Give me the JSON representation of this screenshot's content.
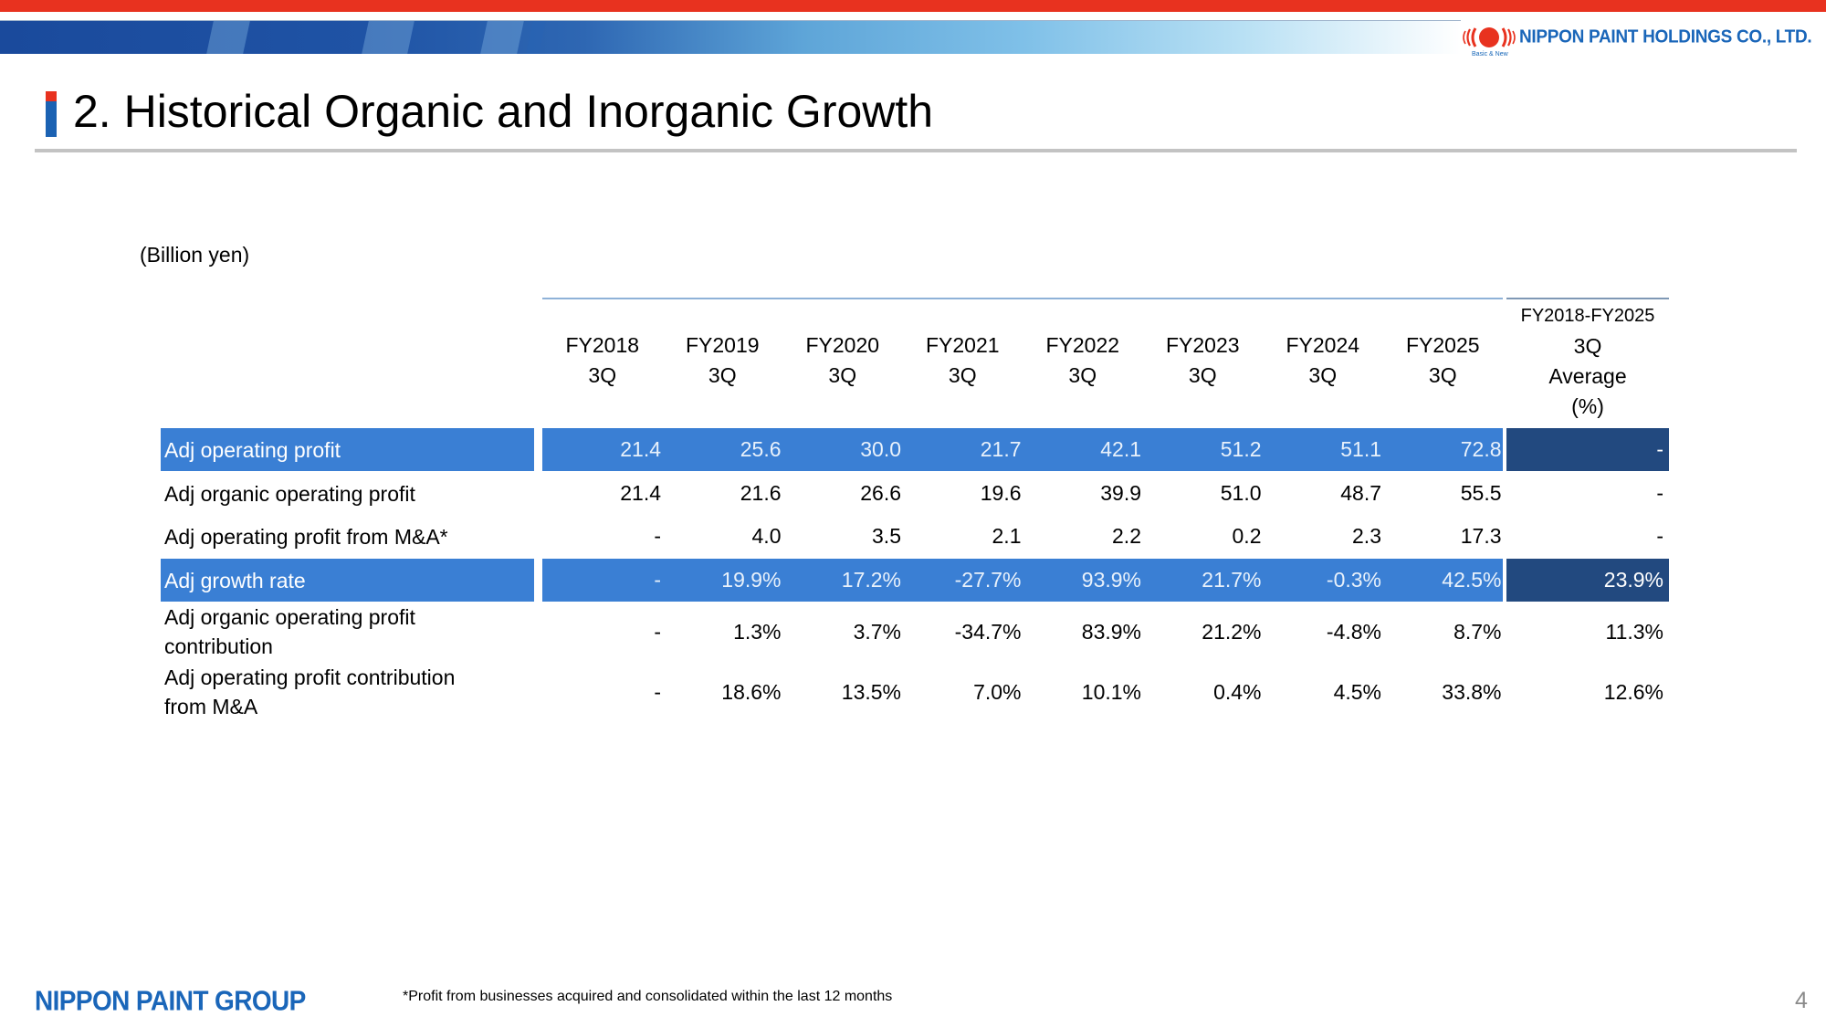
{
  "header": {
    "company_name": "NIPPON PAINT HOLDINGS CO., LTD.",
    "logo_tagline": "Basic & New",
    "brand_colors": {
      "red": "#e8321f",
      "blue": "#1a66b9"
    }
  },
  "title": "2. Historical Organic and Inorganic Growth",
  "unit_label": "(Billion yen)",
  "table": {
    "columns": [
      {
        "line1": "FY2018",
        "line2": "3Q"
      },
      {
        "line1": "FY2019",
        "line2": "3Q"
      },
      {
        "line1": "FY2020",
        "line2": "3Q"
      },
      {
        "line1": "FY2021",
        "line2": "3Q"
      },
      {
        "line1": "FY2022",
        "line2": "3Q"
      },
      {
        "line1": "FY2023",
        "line2": "3Q"
      },
      {
        "line1": "FY2024",
        "line2": "3Q"
      },
      {
        "line1": "FY2025",
        "line2": "3Q"
      }
    ],
    "average_column": {
      "line1": "FY2018-FY2025",
      "line2": "3Q",
      "line3": "Average",
      "line4": "(%)"
    },
    "rows": [
      {
        "label": "Adj operating profit",
        "highlight": true,
        "values": [
          "21.4",
          "25.6",
          "30.0",
          "21.7",
          "42.1",
          "51.2",
          "51.1",
          "72.8"
        ],
        "average": "-"
      },
      {
        "label": "Adj organic operating profit",
        "highlight": false,
        "values": [
          "21.4",
          "21.6",
          "26.6",
          "19.6",
          "39.9",
          "51.0",
          "48.7",
          "55.5"
        ],
        "average": "-"
      },
      {
        "label": "Adj operating profit from M&A*",
        "highlight": false,
        "values": [
          "-",
          "4.0",
          "3.5",
          "2.1",
          "2.2",
          "0.2",
          "2.3",
          "17.3"
        ],
        "average": "-"
      },
      {
        "label": "Adj growth rate",
        "highlight": true,
        "values": [
          "-",
          "19.9%",
          "17.2%",
          "-27.7%",
          "93.9%",
          "21.7%",
          "-0.3%",
          "42.5%"
        ],
        "average": "23.9%"
      },
      {
        "label": "Adj organic operating profit contribution",
        "highlight": false,
        "values": [
          "-",
          "1.3%",
          "3.7%",
          "-34.7%",
          "83.9%",
          "21.2%",
          "-4.8%",
          "8.7%"
        ],
        "average": "11.3%"
      },
      {
        "label": "Adj operating profit contribution from M&A",
        "highlight": false,
        "values": [
          "-",
          "18.6%",
          "13.5%",
          "7.0%",
          "10.1%",
          "0.4%",
          "4.5%",
          "33.8%"
        ],
        "average": "12.6%"
      }
    ],
    "colors": {
      "highlight_row": "#3a7fd4",
      "highlight_average": "#22497f",
      "header_rule": "#8fb2d8"
    }
  },
  "footer": {
    "group_logo": "NIPPON PAINT GROUP",
    "footnote": "*Profit from businesses acquired and consolidated within the last 12 months",
    "page_number": "4"
  }
}
